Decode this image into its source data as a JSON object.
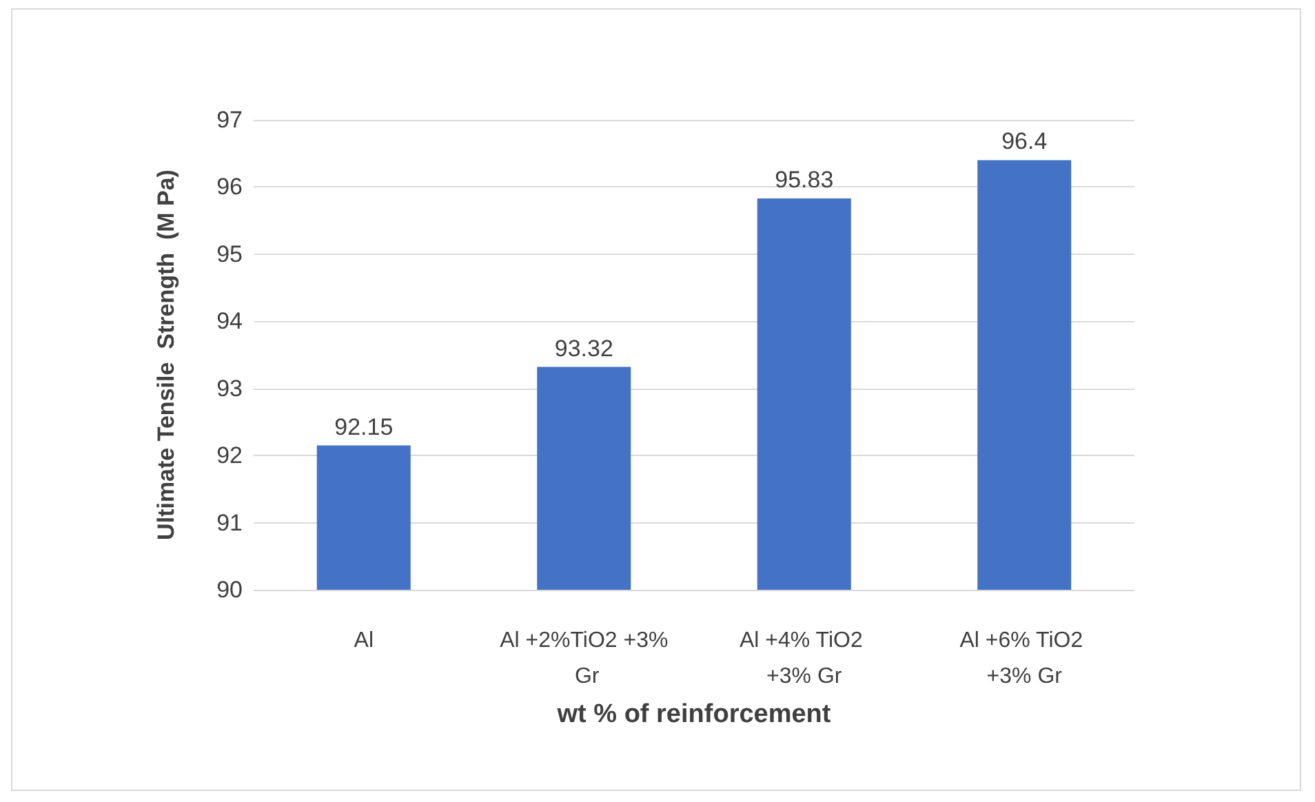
{
  "chart_data": {
    "type": "bar",
    "xlabel": "wt % of reinforcement",
    "ylabel": "Ultimate Tensile  Strength  (M Pa)",
    "categories": [
      "Al",
      "Al +2%TiO2 +3% Gr",
      "Al +4% TiO2 +3% Gr",
      "Al +6% TiO2 +3% Gr"
    ],
    "values": [
      92.15,
      93.32,
      95.83,
      96.4
    ],
    "color": "#4472c4",
    "ylim": [
      90,
      97
    ],
    "yticks": [
      90,
      91,
      92,
      93,
      94,
      95,
      96,
      97
    ],
    "grid": "y",
    "data_labels": true
  }
}
